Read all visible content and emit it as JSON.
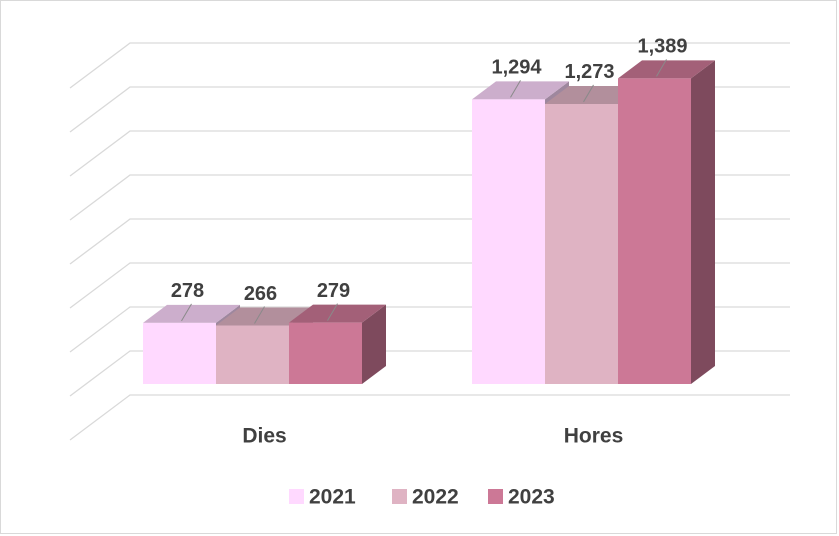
{
  "chart_data": {
    "type": "bar3d",
    "categories": [
      "Dies",
      "Hores"
    ],
    "series": [
      {
        "name": "2021",
        "color": "#ffd9ff",
        "values": [
          278,
          1294
        ],
        "value_labels": [
          "278",
          "1,294"
        ]
      },
      {
        "name": "2022",
        "color": "#dfb3c3",
        "values": [
          266,
          1273
        ],
        "value_labels": [
          "266",
          "1,273"
        ]
      },
      {
        "name": "2023",
        "color": "#cc7896",
        "values": [
          279,
          1389
        ],
        "value_labels": [
          "279",
          "1,389"
        ]
      }
    ],
    "ylim": [
      0,
      1600
    ],
    "yticks": [
      0,
      200,
      400,
      600,
      800,
      1000,
      1200,
      1400,
      1600
    ],
    "grid": true,
    "legend": "bottom"
  }
}
